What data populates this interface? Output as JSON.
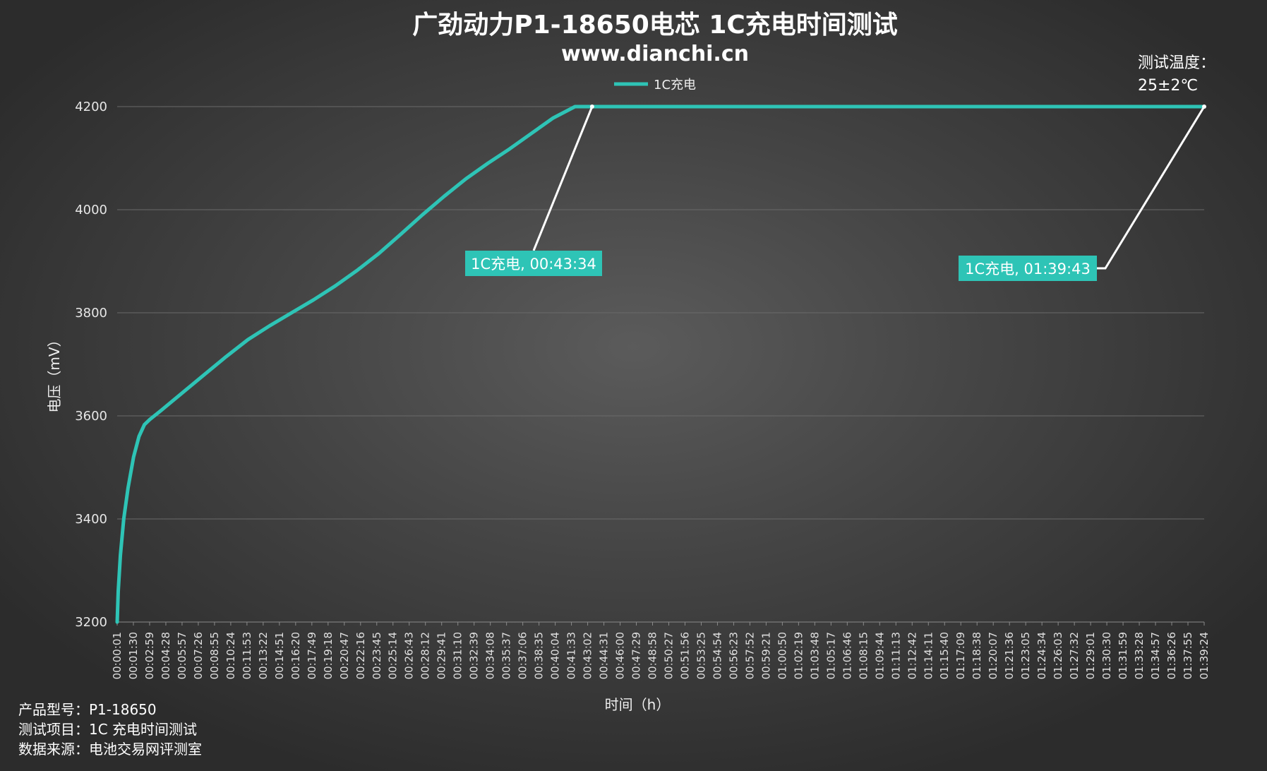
{
  "chart_data": {
    "type": "line",
    "title": "广劲动力P1-18650电芯 1C充电时间测试",
    "subtitle": "www.dianchi.cn",
    "xlabel": "时间（h）",
    "ylabel": "电压（mV）",
    "ylim": [
      3200,
      4200
    ],
    "yticks": [
      3200,
      3400,
      3600,
      3800,
      4000,
      4200
    ],
    "grid": true,
    "legend_position": "top-center",
    "x_tick_labels": [
      "00:00:01",
      "00:01:30",
      "00:02:59",
      "00:04:28",
      "00:05:57",
      "00:07:26",
      "00:08:55",
      "00:10:24",
      "00:11:53",
      "00:13:22",
      "00:14:51",
      "00:16:20",
      "00:17:49",
      "00:19:18",
      "00:20:47",
      "00:22:16",
      "00:23:45",
      "00:25:14",
      "00:26:43",
      "00:28:12",
      "00:29:41",
      "00:31:10",
      "00:32:39",
      "00:34:08",
      "00:35:37",
      "00:37:06",
      "00:38:35",
      "00:40:04",
      "00:41:33",
      "00:43:02",
      "00:44:31",
      "00:46:00",
      "00:47:29",
      "00:48:58",
      "00:50:27",
      "00:51:56",
      "00:53:25",
      "00:54:54",
      "00:56:23",
      "00:57:52",
      "00:59:21",
      "01:00:50",
      "01:02:19",
      "01:03:48",
      "01:05:17",
      "01:06:46",
      "01:08:15",
      "01:09:44",
      "01:11:13",
      "01:12:42",
      "01:14:11",
      "01:15:40",
      "01:17:09",
      "01:18:38",
      "01:20:07",
      "01:21:36",
      "01:23:05",
      "01:24:34",
      "01:26:03",
      "01:27:32",
      "01:29:01",
      "01:30:30",
      "01:31:59",
      "01:33:28",
      "01:34:57",
      "01:36:26",
      "01:37:55",
      "01:39:24"
    ],
    "series": [
      {
        "name": "1C充电",
        "color": "#2ec4b6",
        "x_minutes": [
          0,
          0.1,
          0.3,
          0.6,
          1.0,
          1.5,
          2.0,
          2.5,
          3.0,
          4.0,
          6.0,
          8.0,
          10.0,
          12.0,
          14.0,
          16.0,
          18.0,
          20.0,
          22.0,
          24.0,
          26.0,
          28.0,
          30.0,
          32.0,
          34.0,
          36.0,
          38.0,
          40.0,
          42.0,
          43.57,
          50.0,
          60.0,
          70.0,
          80.0,
          90.0,
          99.72
        ],
        "values": [
          3200,
          3260,
          3330,
          3400,
          3460,
          3520,
          3560,
          3583,
          3593,
          3610,
          3645,
          3680,
          3715,
          3748,
          3775,
          3800,
          3825,
          3852,
          3882,
          3915,
          3952,
          3990,
          4026,
          4060,
          4090,
          4118,
          4148,
          4178,
          4200,
          4200,
          4200,
          4200,
          4200,
          4200,
          4200,
          4200
        ]
      }
    ],
    "annotations": [
      {
        "label": "1C充电, 00:43:34",
        "x_minutes": 43.57,
        "value": 4200
      },
      {
        "label": "1C充电, 01:39:43",
        "x_minutes": 99.72,
        "value": 4200
      }
    ]
  },
  "temperature": {
    "label": "测试温度：",
    "value": "25±2℃"
  },
  "footer": {
    "model": "产品型号：P1-18650",
    "test_item": "测试项目：1C 充电时间测试",
    "source": "数据来源：电池交易网评测室"
  },
  "colors": {
    "accent": "#2ec4b6",
    "grid": "#6a6a6a"
  }
}
